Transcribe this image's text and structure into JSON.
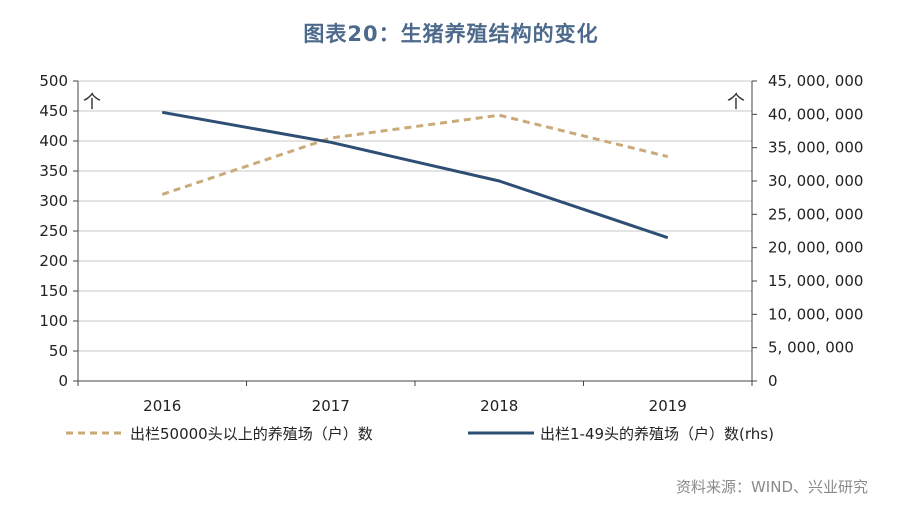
{
  "title": "图表20：生猪养殖结构的变化",
  "source": "资料来源：WIND、兴业研究",
  "colors": {
    "series1": "#c9aa78",
    "series2": "#2e4e73",
    "title": "#4d6a8c",
    "grid": "#c8c8c8"
  },
  "chart_data": {
    "type": "line",
    "categories": [
      "2016",
      "2017",
      "2018",
      "2019"
    ],
    "series": [
      {
        "name": "出栏50000头以上的养殖场（户）数",
        "axis": "left",
        "style": "dashed",
        "values": [
          311,
          405,
          443,
          374
        ]
      },
      {
        "name": "出栏1-49头的养殖场（户）数(rhs)",
        "axis": "right",
        "style": "solid",
        "values": [
          40300000,
          35800000,
          30000000,
          21500000
        ]
      }
    ],
    "left_axis": {
      "unit": "个",
      "ylim": [
        0,
        500
      ],
      "ticks": [
        "0",
        "50",
        "100",
        "150",
        "200",
        "250",
        "300",
        "350",
        "400",
        "450",
        "500"
      ]
    },
    "right_axis": {
      "unit": "个",
      "ylim": [
        0,
        45000000
      ],
      "ticks": [
        "0",
        "5, 000, 000",
        "10, 000, 000",
        "15, 000, 000",
        "20, 000, 000",
        "25, 000, 000",
        "30, 000, 000",
        "35, 000, 000",
        "40, 000, 000",
        "45, 000, 000"
      ]
    },
    "grid": true,
    "legend": "bottom"
  }
}
